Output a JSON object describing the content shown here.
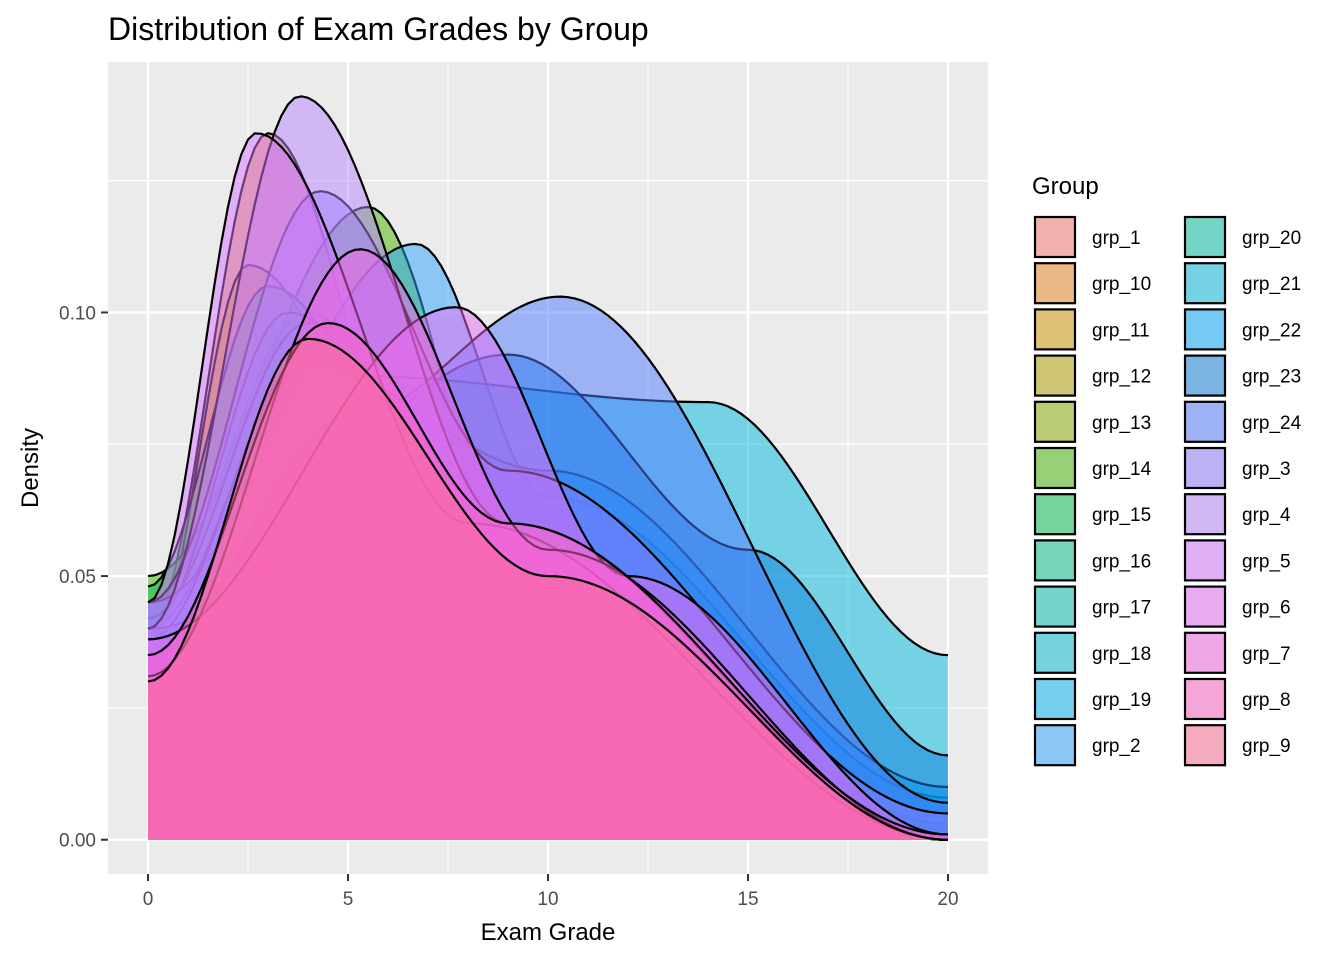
{
  "chart_data": {
    "type": "area",
    "subtype": "density",
    "title": "Distribution of Exam Grades by Group",
    "xlabel": "Exam Grade",
    "ylabel": "Density",
    "xlim": [
      -1,
      21
    ],
    "ylim": [
      -0.0065,
      0.1475
    ],
    "x_ticks": [
      0,
      5,
      10,
      15,
      20
    ],
    "y_ticks": [
      0.0,
      0.05,
      0.1
    ],
    "y_tick_labels": [
      "0.00",
      "0.05",
      "0.10"
    ],
    "grid": true,
    "legend": {
      "title": "Group",
      "position": "right",
      "columns": 2
    },
    "fill_alpha": 0.5,
    "series": [
      {
        "name": "grp_1",
        "color": "#F8766D",
        "peaks": [
          [
            0,
            0.026
          ],
          [
            4,
            0.085
          ],
          [
            9,
            0.058
          ],
          [
            20,
            0.0
          ]
        ]
      },
      {
        "name": "grp_10",
        "color": "#E7851E",
        "peaks": [
          [
            0,
            0.04
          ],
          [
            3,
            0.134
          ],
          [
            7,
            0.06
          ],
          [
            20,
            0.0
          ]
        ]
      },
      {
        "name": "grp_11",
        "color": "#D09400",
        "peaks": [
          [
            0,
            0.035
          ],
          [
            2.5,
            0.109
          ],
          [
            8,
            0.04
          ],
          [
            20,
            0.0
          ]
        ]
      },
      {
        "name": "grp_12",
        "color": "#B2A100",
        "peaks": [
          [
            0,
            0.03
          ],
          [
            3.5,
            0.095
          ],
          [
            8,
            0.05
          ],
          [
            20,
            0.001
          ]
        ]
      },
      {
        "name": "grp_13",
        "color": "#89AC00",
        "peaks": [
          [
            0,
            0.045
          ],
          [
            4,
            0.1
          ],
          [
            9,
            0.045
          ],
          [
            20,
            0.0
          ]
        ]
      },
      {
        "name": "grp_14",
        "color": "#45B500",
        "peaks": [
          [
            0,
            0.05
          ],
          [
            5.5,
            0.12
          ],
          [
            10,
            0.03
          ],
          [
            20,
            0.0
          ]
        ]
      },
      {
        "name": "grp_15",
        "color": "#00BC51",
        "peaks": [
          [
            0,
            0.048
          ],
          [
            3,
            0.105
          ],
          [
            8,
            0.055
          ],
          [
            20,
            0.0
          ]
        ]
      },
      {
        "name": "grp_16",
        "color": "#00C087",
        "peaks": [
          [
            0,
            0.04
          ],
          [
            3.5,
            0.1
          ],
          [
            9,
            0.05
          ],
          [
            20,
            0.0
          ]
        ]
      },
      {
        "name": "grp_17",
        "color": "#00C0B2",
        "peaks": [
          [
            0,
            0.042
          ],
          [
            4,
            0.098
          ],
          [
            10,
            0.04
          ],
          [
            20,
            0.0
          ]
        ]
      },
      {
        "name": "grp_18",
        "color": "#00BCD6",
        "peaks": [
          [
            0,
            0.035
          ],
          [
            4.5,
            0.095
          ],
          [
            12,
            0.03
          ],
          [
            20,
            0.0
          ]
        ]
      },
      {
        "name": "grp_19",
        "color": "#00B3F2",
        "peaks": [
          [
            0,
            0.04
          ],
          [
            4,
            0.09
          ],
          [
            10,
            0.045
          ],
          [
            20,
            0.002
          ]
        ]
      },
      {
        "name": "grp_2",
        "color": "#29A3FF",
        "peaks": [
          [
            0,
            0.045
          ],
          [
            6.7,
            0.113
          ],
          [
            10,
            0.065
          ],
          [
            20,
            0.008
          ]
        ]
      },
      {
        "name": "grp_20",
        "color": "#00C1A3",
        "peaks": [
          [
            0,
            0.038
          ],
          [
            4,
            0.092
          ],
          [
            9,
            0.06
          ],
          [
            20,
            0.003
          ]
        ]
      },
      {
        "name": "grp_21",
        "color": "#00BAE0",
        "peaks": [
          [
            0,
            0.035
          ],
          [
            5,
            0.088
          ],
          [
            14,
            0.083
          ],
          [
            20,
            0.035
          ]
        ]
      },
      {
        "name": "grp_22",
        "color": "#00A9FF",
        "peaks": [
          [
            0,
            0.033
          ],
          [
            4,
            0.09
          ],
          [
            10,
            0.07
          ],
          [
            20,
            0.01
          ]
        ]
      },
      {
        "name": "grp_23",
        "color": "#0C7BDC",
        "peaks": [
          [
            0,
            0.04
          ],
          [
            9,
            0.092
          ],
          [
            15,
            0.055
          ],
          [
            20,
            0.016
          ]
        ]
      },
      {
        "name": "grp_24",
        "color": "#4D79FF",
        "peaks": [
          [
            0,
            0.035
          ],
          [
            5,
            0.08
          ],
          [
            10.3,
            0.103
          ],
          [
            20,
            0.007
          ]
        ]
      },
      {
        "name": "grp_3",
        "color": "#8B7AFF",
        "peaks": [
          [
            0,
            0.045
          ],
          [
            4.3,
            0.123
          ],
          [
            9,
            0.07
          ],
          [
            20,
            0.005
          ]
        ]
      },
      {
        "name": "grp_4",
        "color": "#B983FF",
        "peaks": [
          [
            0,
            0.04
          ],
          [
            3.8,
            0.141
          ],
          [
            9,
            0.06
          ],
          [
            20,
            0.0
          ]
        ]
      },
      {
        "name": "grp_5",
        "color": "#D674FF",
        "peaks": [
          [
            0,
            0.045
          ],
          [
            2.7,
            0.134
          ],
          [
            8,
            0.06
          ],
          [
            20,
            0.0
          ]
        ]
      },
      {
        "name": "grp_6",
        "color": "#E76BF3",
        "peaks": [
          [
            0,
            0.038
          ],
          [
            7.7,
            0.101
          ],
          [
            12,
            0.05
          ],
          [
            20,
            0.001
          ]
        ]
      },
      {
        "name": "grp_7",
        "color": "#F564E3",
        "peaks": [
          [
            0,
            0.031
          ],
          [
            5.3,
            0.112
          ],
          [
            10,
            0.055
          ],
          [
            20,
            0.0
          ]
        ]
      },
      {
        "name": "grp_8",
        "color": "#FF61C3",
        "peaks": [
          [
            0,
            0.035
          ],
          [
            4.5,
            0.098
          ],
          [
            9,
            0.06
          ],
          [
            20,
            0.001
          ]
        ]
      },
      {
        "name": "grp_9",
        "color": "#FF6C92",
        "peaks": [
          [
            0,
            0.03
          ],
          [
            4,
            0.095
          ],
          [
            10,
            0.05
          ],
          [
            20,
            0.0
          ]
        ]
      }
    ]
  }
}
